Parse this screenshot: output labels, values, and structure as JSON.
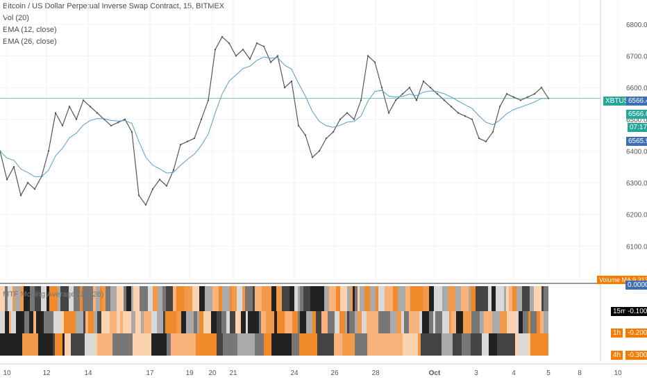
{
  "header": {
    "title": "Bitcoin / US Dollar Perpetual Inverse Swap Contract, 15, BITMEX",
    "indicators": [
      "Vol (20)",
      "EMA (12, close)",
      "EMA (26, close)"
    ]
  },
  "chart_data": [
    {
      "type": "line",
      "title": "Bitcoin / US Dollar Perpetual Inverse Swap Contract, 15, BITMEX",
      "symbol": "XBTUSD",
      "ylim": [
        6000,
        6850
      ],
      "price_ticks": [
        "6800.0",
        "6700.0",
        "6600.0",
        "6500.0",
        "6400.0",
        "6300.0",
        "6200.0",
        "6100.0"
      ],
      "date_ticks": [
        "10",
        "12",
        "14",
        "17",
        "19",
        "20",
        "21",
        "24",
        "26",
        "28",
        "Oct",
        "3",
        "4",
        "5",
        "8",
        "10"
      ],
      "x_note": "15-minute bars, Sep 10 to Oct 6",
      "series": [
        {
          "name": "price",
          "x": [
            0,
            1,
            2,
            3,
            4,
            5,
            6,
            7,
            8,
            9,
            10,
            11,
            12,
            13,
            14,
            15,
            16,
            17,
            18,
            19,
            20,
            21,
            22,
            23,
            24,
            25,
            26,
            27,
            28,
            29,
            30,
            31,
            32,
            33,
            34,
            35,
            36,
            37,
            38,
            39,
            40,
            41,
            42,
            43,
            44,
            45,
            46,
            47,
            48,
            49,
            50,
            51,
            52,
            53,
            54,
            55,
            56,
            57,
            58,
            59,
            60,
            61,
            62,
            63,
            64,
            65,
            66,
            67,
            68,
            69,
            70,
            71,
            72,
            73,
            74,
            75,
            76,
            77,
            78,
            79
          ],
          "values": [
            6400,
            6310,
            6350,
            6260,
            6300,
            6280,
            6320,
            6400,
            6520,
            6480,
            6540,
            6500,
            6560,
            6540,
            6520,
            6500,
            6480,
            6490,
            6500,
            6460,
            6260,
            6230,
            6280,
            6310,
            6290,
            6340,
            6420,
            6430,
            6440,
            6500,
            6560,
            6720,
            6760,
            6740,
            6700,
            6720,
            6690,
            6740,
            6730,
            6680,
            6700,
            6600,
            6620,
            6480,
            6450,
            6380,
            6400,
            6440,
            6460,
            6500,
            6520,
            6500,
            6560,
            6700,
            6680,
            6600,
            6520,
            6560,
            6580,
            6600,
            6560,
            6620,
            6600,
            6580,
            6560,
            6540,
            6520,
            6510,
            6500,
            6440,
            6430,
            6460,
            6540,
            6580,
            6570,
            6560,
            6570,
            6580,
            6600,
            6566
          ]
        }
      ],
      "current_price": "6566.4",
      "markers": [
        "6566.0",
        "07:17",
        "6565.9"
      ],
      "volume": {
        "label": "Volume MA",
        "ma_value": "9.313M"
      },
      "lower_pane": {
        "title": "MTF Moving Average (12, 26)",
        "rows": [
          "15m",
          "1h",
          "4h"
        ],
        "value_labels": [
          "0.0000",
          "-0.1000",
          "-0.2000",
          "-0.3000"
        ]
      }
    }
  ],
  "colors": {
    "background": "#ffffff",
    "price_line": "#555555",
    "ema_line": "#4ea0c8",
    "grid": "#eef2f5",
    "accent_teal": "#26a69a",
    "accent_blue": "#3d6db5",
    "orange": "#f57c00",
    "black_label": "#000000"
  }
}
